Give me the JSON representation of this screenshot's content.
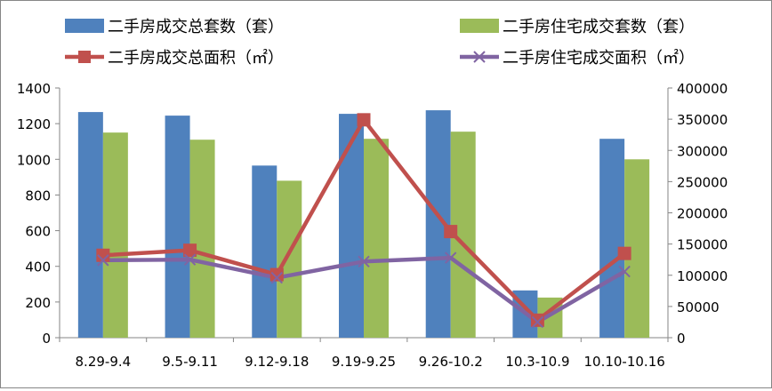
{
  "chart_data": {
    "type": "bar",
    "categories": [
      "8.29-9.4",
      "9.5-9.11",
      "9.12-9.18",
      "9.19-9.25",
      "9.26-10.2",
      "10.3-10.9",
      "10.10-10.16"
    ],
    "series": [
      {
        "name": "二手房成交总套数（套）",
        "kind": "bar",
        "axis": "left",
        "color": "#4F81BD",
        "values": [
          1265,
          1245,
          965,
          1255,
          1275,
          265,
          1115
        ]
      },
      {
        "name": "二手房住宅成交套数（套）",
        "kind": "bar",
        "axis": "left",
        "color": "#9BBB59",
        "values": [
          1150,
          1110,
          880,
          1115,
          1155,
          225,
          1000
        ]
      },
      {
        "name": "二手房成交总面积（㎡）",
        "kind": "line",
        "axis": "right",
        "color": "#C0504D",
        "marker": "square",
        "values": [
          132000,
          140000,
          101000,
          349000,
          170000,
          28000,
          135000
        ]
      },
      {
        "name": "二手房住宅成交面积（㎡）",
        "kind": "line",
        "axis": "right",
        "color": "#8064A2",
        "marker": "x",
        "values": [
          124000,
          125000,
          96000,
          122000,
          128000,
          25000,
          106000
        ]
      }
    ],
    "ylim_left": [
      0,
      1400
    ],
    "yticks_left": [
      0,
      200,
      400,
      600,
      800,
      1000,
      1200,
      1400
    ],
    "ylim_right": [
      0,
      400000
    ],
    "yticks_right": [
      0,
      50000,
      100000,
      150000,
      200000,
      250000,
      300000,
      350000,
      400000
    ],
    "grid": false,
    "legend_position": "top"
  }
}
